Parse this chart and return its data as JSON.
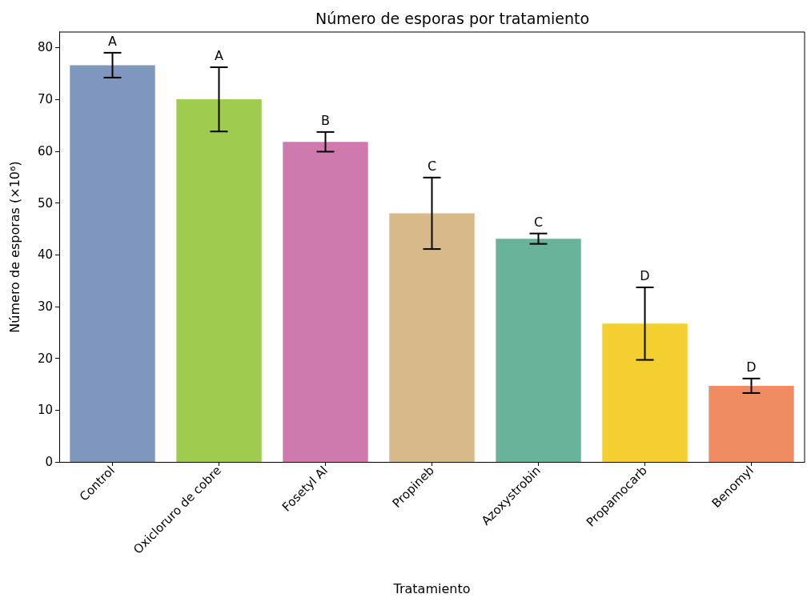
{
  "chart_data": {
    "type": "bar",
    "title": "Número de esporas por tratamiento",
    "xlabel": "Tratamiento",
    "ylabel": "Número de esporas (×10⁶)",
    "categories": [
      "Control",
      "Oxicloruro de cobre",
      "Fosetyl Al",
      "Propineb",
      "Azoxystrobin",
      "Propamocarb",
      "Benomyl"
    ],
    "values": [
      76.6,
      70.0,
      61.8,
      48.0,
      43.1,
      26.7,
      14.7
    ],
    "errors": [
      2.4,
      6.2,
      1.9,
      6.9,
      1.0,
      7.0,
      1.4
    ],
    "colors": [
      "#7f96bf",
      "#9fcb4f",
      "#cf7aae",
      "#d8b98a",
      "#68b39a",
      "#f3d02f",
      "#f08c62"
    ],
    "ylim": [
      0,
      83
    ],
    "yticks": [
      0,
      10,
      20,
      30,
      40,
      50,
      60,
      70,
      80
    ],
    "grid": false,
    "annotations": [
      {
        "text": "A",
        "x": "Control",
        "y": 79.0
      },
      {
        "text": "A",
        "x": "Oxicloruro de cobre",
        "y": 76.2
      },
      {
        "text": "B",
        "x": "Fosetyl Al",
        "y": 63.7
      },
      {
        "text": "C",
        "x": "Propineb",
        "y": 54.9
      },
      {
        "text": "C",
        "x": "Azoxystrobin",
        "y": 44.1
      },
      {
        "text": "D",
        "x": "Propamocarb",
        "y": 33.7
      },
      {
        "text": "D",
        "x": "Benomyl",
        "y": 16.1
      }
    ]
  }
}
